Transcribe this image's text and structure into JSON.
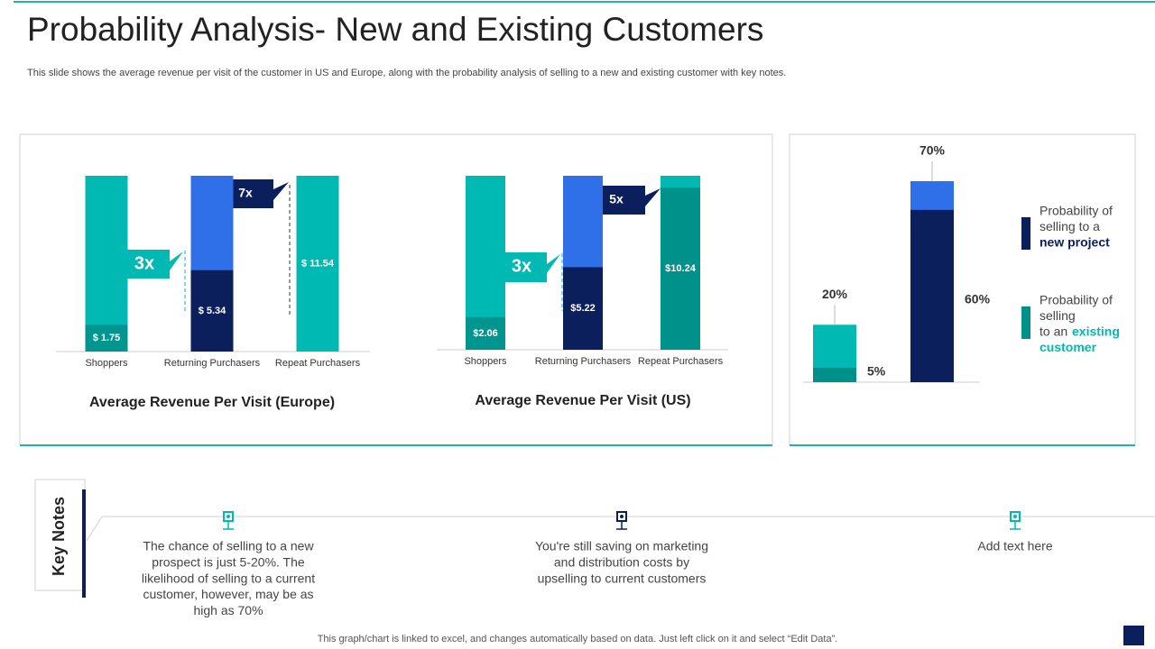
{
  "title": "Probability Analysis- New and Existing Customers",
  "subtitle": "This slide shows the average revenue per visit of the customer in US and Europe, along with the probability analysis of selling to a new and existing customer with key notes.",
  "chart_data": [
    {
      "type": "bar",
      "title": "Average Revenue Per Visit (Europe)",
      "categories": [
        "Shoppers",
        "Returning Purchasers",
        "Repeat Purchasers"
      ],
      "background_colors": [
        "#00b9b2",
        "#2f6fe8",
        "#00b9b2"
      ],
      "series": [
        {
          "values": [
            1.75,
            5.34,
            11.54
          ],
          "value_labels": [
            "$ 1.75",
            "$ 5.34",
            "$ 11.54"
          ],
          "colors": [
            "#00968f",
            "#0b1f5c",
            "#00b9b2"
          ],
          "label_position": "inside"
        }
      ],
      "ylim": [
        0,
        11.54
      ],
      "annotations": [
        {
          "text": "3x"
        },
        {
          "text": "7x"
        }
      ]
    },
    {
      "type": "bar",
      "title": "Average Revenue Per Visit (US)",
      "categories": [
        "Shoppers",
        "Returning Purchasers",
        "Repeat Purchasers"
      ],
      "background_colors": [
        "#00b9b2",
        "#2f6fe8",
        "#00b9b2"
      ],
      "series": [
        {
          "values": [
            2.06,
            5.22,
            10.24
          ],
          "value_labels": [
            "$2.06",
            "$5.22",
            "$10.24"
          ],
          "colors": [
            "#00968f",
            "#0b1f5c",
            "#00918a"
          ],
          "label_position": "inside"
        }
      ],
      "ylim": [
        0,
        11
      ],
      "annotations": [
        {
          "text": "3x"
        },
        {
          "text": "5x"
        }
      ]
    },
    {
      "type": "bar",
      "categories": [
        null,
        null
      ],
      "series": [
        {
          "values": [
            20,
            70
          ],
          "value_labels": [
            "20%",
            "70%"
          ],
          "colors": [
            "#00b9b2",
            "#2f6fe8"
          ],
          "label_position": "above"
        },
        {
          "values": [
            5,
            60
          ],
          "value_labels": [
            "5%",
            "60%"
          ],
          "colors": [
            "#00908a",
            "#0b1f5c"
          ],
          "label_position": "right"
        }
      ],
      "ylim": [
        0,
        70
      ],
      "legend": [
        {
          "color": "#0b1f5c",
          "lines": [
            "Probability of",
            "selling to a"
          ],
          "highlight": [
            "new project"
          ]
        },
        {
          "color": "#00908a",
          "lines": [
            "Probability of",
            "selling",
            "to an"
          ],
          "highlight": [
            "existing",
            "customer"
          ]
        }
      ]
    }
  ],
  "key_notes": {
    "title": "Key Notes",
    "notes": [
      {
        "lines": [
          "The chance of selling to a new",
          "prospect is just 5-20%. The",
          "likelihood of selling to a current",
          "customer, however, may be as",
          "high as 70%"
        ]
      },
      {
        "lines": [
          "You're still saving on marketing",
          "and distribution costs by",
          "upselling to current customers"
        ]
      },
      {
        "lines": [
          "Add text here"
        ]
      }
    ]
  },
  "footer": "This graph/chart is linked to excel,  and changes automatically based on data. Just left click on it and select “Edit Data”."
}
